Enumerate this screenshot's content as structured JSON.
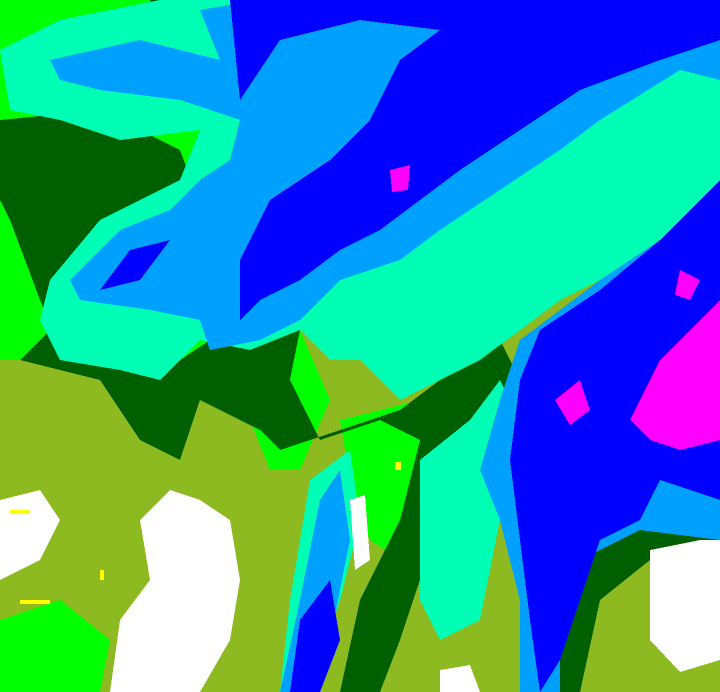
{
  "palette": {
    "olive": "#8cba20",
    "lime": "#00ff00",
    "dark_green": "#005f00",
    "aqua": "#00ffb4",
    "light_blue": "#00a0ff",
    "blue": "#0000ff",
    "magenta": "#ff00ff",
    "white": "#ffffff",
    "yellow": "#ffff00"
  }
}
